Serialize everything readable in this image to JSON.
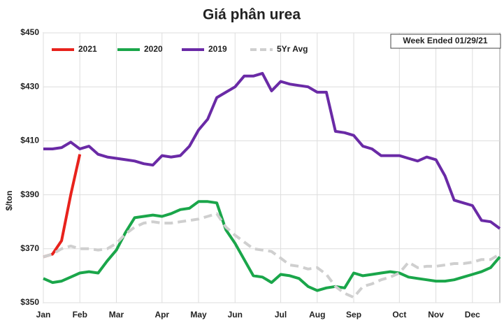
{
  "chart_data": {
    "type": "line",
    "title": "Giá phân urea",
    "ylabel": "$/ton",
    "annotation": "Week Ended 01/29/21",
    "categories": [
      "Jan",
      null,
      null,
      null,
      "Feb",
      null,
      null,
      null,
      "Mar",
      null,
      null,
      null,
      null,
      "Apr",
      null,
      null,
      null,
      "May",
      null,
      null,
      null,
      "Jun",
      null,
      null,
      null,
      null,
      "Jul",
      null,
      null,
      null,
      "Aug",
      null,
      null,
      null,
      "Sep",
      null,
      null,
      null,
      null,
      "Oct",
      null,
      null,
      null,
      "Nov",
      null,
      null,
      null,
      "Dec",
      null,
      null,
      null
    ],
    "ylim": [
      350,
      450
    ],
    "yticks": [
      {
        "value": 350,
        "label": "$350"
      },
      {
        "value": 370,
        "label": "$370"
      },
      {
        "value": 390,
        "label": "$390"
      },
      {
        "value": 410,
        "label": "$410"
      },
      {
        "value": 430,
        "label": "$430"
      },
      {
        "value": 450,
        "label": "$450"
      }
    ],
    "grid": true,
    "legend": "top-left",
    "series": [
      {
        "name": "2021",
        "color": "#e8221c",
        "values": [
          367,
          368,
          373,
          390,
          405,
          null,
          null,
          null,
          null,
          null,
          null,
          null,
          null,
          null,
          null,
          null,
          null,
          null,
          null,
          null,
          null,
          null,
          null,
          null,
          null,
          null,
          null,
          null,
          null,
          null,
          null,
          null,
          null,
          null,
          null,
          null,
          null,
          null,
          null,
          null,
          null,
          null,
          null,
          null,
          null,
          null,
          null,
          null,
          null,
          null,
          null
        ]
      },
      {
        "name": "2020",
        "color": "#1aa64a",
        "values": [
          359,
          357.5,
          358,
          359.5,
          361,
          361.5,
          361,
          365.5,
          369.5,
          376,
          381.5,
          382,
          382.5,
          382,
          383,
          384.5,
          385,
          387.5,
          387.5,
          387,
          377,
          372,
          366,
          360,
          359.5,
          357.5,
          360.5,
          360,
          359,
          356,
          354.5,
          355.5,
          356,
          355.5,
          361,
          360,
          360.5,
          361,
          361.5,
          361,
          359.5,
          359,
          358.5,
          358,
          358,
          358.5,
          359.5,
          360.5,
          361.5,
          363,
          367
        ]
      },
      {
        "name": "2019",
        "color": "#6a2aa6",
        "values": [
          407,
          407,
          407.5,
          409.5,
          407,
          408,
          405,
          404,
          403.5,
          403,
          402.5,
          401.5,
          401,
          404.5,
          404,
          404.5,
          408,
          414,
          418,
          426,
          428,
          430,
          434,
          434,
          435,
          428.5,
          432,
          431,
          430.5,
          430,
          428,
          428,
          413.5,
          413,
          412,
          408,
          407,
          404.5,
          404.5,
          404.5,
          403.5,
          402.5,
          404,
          403,
          397,
          388,
          387,
          386,
          380.5,
          380,
          377.5
        ]
      },
      {
        "name": "5Yr Avg",
        "color": "#cfcfcf",
        "dashed": true,
        "values": [
          367,
          368,
          370,
          371,
          370,
          370,
          369.5,
          370,
          372,
          375.5,
          378,
          379.5,
          380,
          379.5,
          379.5,
          380,
          380.5,
          381,
          382,
          383,
          378,
          375,
          372.5,
          370,
          369.5,
          369,
          366.5,
          364,
          363.5,
          362.5,
          363,
          360.5,
          356,
          353.5,
          352,
          356,
          357,
          358.5,
          359.5,
          361,
          365,
          363,
          363.5,
          363.5,
          364,
          364.5,
          364.5,
          365,
          366,
          366,
          368
        ]
      }
    ]
  }
}
